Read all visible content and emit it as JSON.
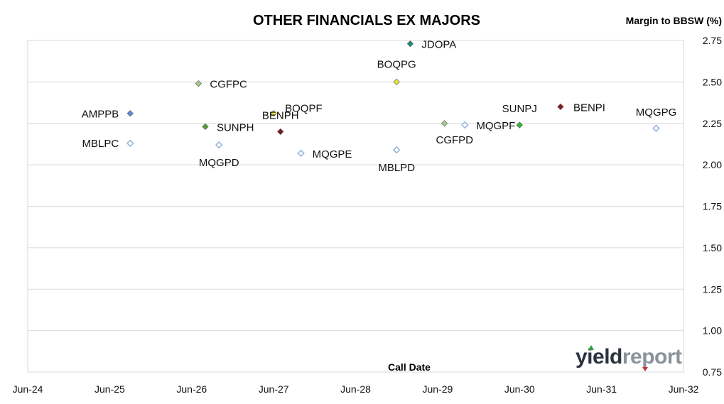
{
  "chart_data": {
    "type": "scatter",
    "title": "OTHER FINANCIALS EX MAJORS",
    "xlabel": "Call Date",
    "ylabel": "Margin to BBSW (%)",
    "x_ticks": [
      "Jun-24",
      "Jun-25",
      "Jun-26",
      "Jun-27",
      "Jun-28",
      "Jun-29",
      "Jun-30",
      "Jun-31",
      "Jun-32"
    ],
    "xlim": [
      "Jun-24",
      "Jun-32"
    ],
    "y_ticks": [
      "0.75",
      "1.00",
      "1.25",
      "1.50",
      "1.75",
      "2.00",
      "2.25",
      "2.50",
      "2.75"
    ],
    "ylim": [
      0.75,
      2.75
    ],
    "grid": "horizontal",
    "legend": "none",
    "points": [
      {
        "label": "AMPPB",
        "x": "Sep-25",
        "y": 2.31,
        "marker": "filled",
        "color": "#5b8fd6"
      },
      {
        "label": "MBLPC",
        "x": "Sep-25",
        "y": 2.13,
        "marker": "hollow",
        "color": "#9ab7de"
      },
      {
        "label": "CGFPC",
        "x": "Jul-26",
        "y": 2.49,
        "marker": "filled",
        "color": "#a3cc8a"
      },
      {
        "label": "SUNPH",
        "x": "Aug-26",
        "y": 2.23,
        "marker": "filled",
        "color": "#5a9c3a"
      },
      {
        "label": "MQGPD",
        "x": "Oct-26",
        "y": 2.12,
        "marker": "hollow",
        "color": "#9ab7de"
      },
      {
        "label": "BOQPF",
        "x": "Jun-27",
        "y": 2.31,
        "marker": "filled",
        "color": "#e8e23a"
      },
      {
        "label": "BENPH",
        "x": "Jul-27",
        "y": 2.2,
        "marker": "filled",
        "color": "#7a1a1a"
      },
      {
        "label": "MQGPE",
        "x": "Oct-27",
        "y": 2.07,
        "marker": "hollow",
        "color": "#9ab7de"
      },
      {
        "label": "BOQPG",
        "x": "Dec-28",
        "y": 2.5,
        "marker": "filled",
        "color": "#e8e23a"
      },
      {
        "label": "MBLPD",
        "x": "Dec-28",
        "y": 2.09,
        "marker": "hollow",
        "color": "#9ab7de"
      },
      {
        "label": "JDOPA",
        "x": "Feb-29",
        "y": 2.73,
        "marker": "filled",
        "color": "#1a8a7a"
      },
      {
        "label": "CGFPD",
        "x": "Jul-29",
        "y": 2.25,
        "marker": "filled",
        "color": "#a3cc8a"
      },
      {
        "label": "MQGPF",
        "x": "Oct-29",
        "y": 2.24,
        "marker": "hollow",
        "color": "#9ab7de"
      },
      {
        "label": "SUNPJ",
        "x": "Jun-30",
        "y": 2.24,
        "marker": "filled",
        "color": "#2db82d"
      },
      {
        "label": "BENPI",
        "x": "Dec-30",
        "y": 2.35,
        "marker": "filled",
        "color": "#8b1a1a"
      },
      {
        "label": "MQGPG",
        "x": "Feb-32",
        "y": 2.22,
        "marker": "hollow",
        "color": "#9ab7de"
      }
    ]
  },
  "logo": {
    "text_dark": "yield",
    "text_light": "report",
    "color_dark": "#2b3340",
    "color_light": "#8a929c",
    "arrow_up_color": "#2e9e3a",
    "arrow_down_color": "#d23030"
  }
}
